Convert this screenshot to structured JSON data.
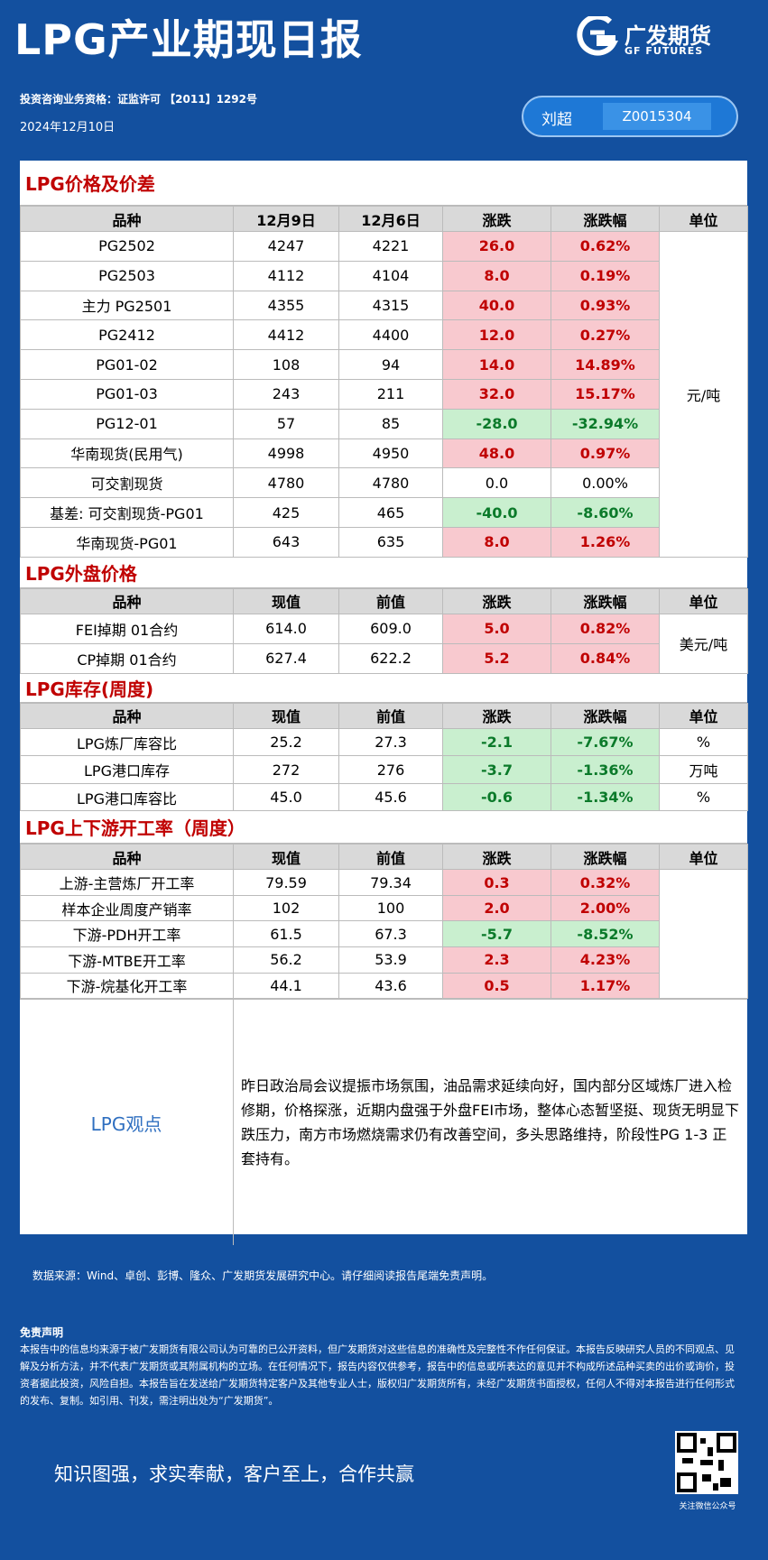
{
  "header": {
    "title": "LPG产业期现日报",
    "logo_cn": "广发期货",
    "logo_en": "GF FUTURES",
    "qualification": "投资咨询业务资格：证监许可 【2011】1292号",
    "date": "2024年12月10日",
    "analyst": "刘超",
    "analyst_id": "Z0015304"
  },
  "sections": [
    {
      "title": "LPG价格及价差",
      "headers": [
        "品种",
        "12月9日",
        "12月6日",
        "涨跌",
        "涨跌幅",
        "单位"
      ],
      "unit": "元/吨",
      "rows": [
        [
          "PG2502",
          "4247",
          "4221",
          "26.0",
          "0.62%"
        ],
        [
          "PG2503",
          "4112",
          "4104",
          "8.0",
          "0.19%"
        ],
        [
          "主力 PG2501",
          "4355",
          "4315",
          "40.0",
          "0.93%"
        ],
        [
          "PG2412",
          "4412",
          "4400",
          "12.0",
          "0.27%"
        ],
        [
          "PG01-02",
          "108",
          "94",
          "14.0",
          "14.89%"
        ],
        [
          "PG01-03",
          "243",
          "211",
          "32.0",
          "15.17%"
        ],
        [
          "PG12-01",
          "57",
          "85",
          "-28.0",
          "-32.94%"
        ],
        [
          "华南现货(民用气)",
          "4998",
          "4950",
          "48.0",
          "0.97%"
        ],
        [
          "可交割现货",
          "4780",
          "4780",
          "0.0",
          "0.00%"
        ],
        [
          "基差: 可交割现货-PG01",
          "425",
          "465",
          "-40.0",
          "-8.60%"
        ],
        [
          "华南现货-PG01",
          "643",
          "635",
          "8.0",
          "1.26%"
        ]
      ]
    },
    {
      "title": "LPG外盘价格",
      "headers": [
        "品种",
        "现值",
        "前值",
        "涨跌",
        "涨跌幅",
        "单位"
      ],
      "unit": "美元/吨",
      "rows": [
        [
          "FEI掉期 01合约",
          "614.0",
          "609.0",
          "5.0",
          "0.82%"
        ],
        [
          "CP掉期  01合约",
          "627.4",
          "622.2",
          "5.2",
          "0.84%"
        ]
      ]
    },
    {
      "title": "LPG库存(周度)",
      "headers": [
        "品种",
        "现值",
        "前值",
        "涨跌",
        "涨跌幅",
        "单位"
      ],
      "rows": [
        [
          "LPG炼厂库容比",
          "25.2",
          "27.3",
          "-2.1",
          "-7.67%",
          "%"
        ],
        [
          "LPG港口库存",
          "272",
          "276",
          "-3.7",
          "-1.36%",
          "万吨"
        ],
        [
          "LPG港口库容比",
          "45.0",
          "45.6",
          "-0.6",
          "-1.34%",
          "%"
        ]
      ]
    },
    {
      "title": "LPG上下游开工率（周度）",
      "headers": [
        "品种",
        "现值",
        "前值",
        "涨跌",
        "涨跌幅",
        "单位"
      ],
      "rows": [
        [
          "上游-主营炼厂开工率",
          "79.59",
          "79.34",
          "0.3",
          "0.32%"
        ],
        [
          "样本企业周度产销率",
          "102",
          "100",
          "2.0",
          "2.00%"
        ],
        [
          "下游-PDH开工率",
          "61.5",
          "67.3",
          "-5.7",
          "-8.52%"
        ],
        [
          "下游-MTBE开工率",
          "56.2",
          "53.9",
          "2.3",
          "4.23%"
        ],
        [
          "下游-烷基化开工率",
          "44.1",
          "43.6",
          "0.5",
          "1.17%"
        ]
      ]
    }
  ],
  "opinion": {
    "label": "LPG观点",
    "text": "昨日政治局会议提振市场氛围，油品需求延续向好，国内部分区域炼厂进入检修期，价格探涨，近期内盘强于外盘FEI市场，整体心态暂坚挺、现货无明显下跌压力，南方市场燃烧需求仍有改善空间，多头思路维持，阶段性PG 1-3 正套持有。"
  },
  "footer": {
    "source": "数据来源：Wind、卓创、彭博、隆众、广发期货发展研究中心。请仔细阅读报告尾端免责声明。",
    "disclaimer_title": "免责声明",
    "disclaimer": "本报告中的信息均来源于被广发期货有限公司认为可靠的已公开资料，但广发期货对这些信息的准确性及完整性不作任何保证。本报告反映研究人员的不同观点、见解及分析方法，并不代表广发期货或其附属机构的立场。在任何情况下，报告内容仅供参考，报告中的信息或所表达的意见并不构成所述品种买卖的出价或询价，投资者据此投资，风险自担。本报告旨在发送给广发期货特定客户及其他专业人士，版权归广发期货所有，未经广发期货书面授权，任何人不得对本报告进行任何形式的发布、复制。如引用、刊发，需注明出处为“广发期货”。",
    "slogan": "知识图强，求实奉献，客户至上，合作共赢",
    "qr_label": "关注微信公众号"
  }
}
